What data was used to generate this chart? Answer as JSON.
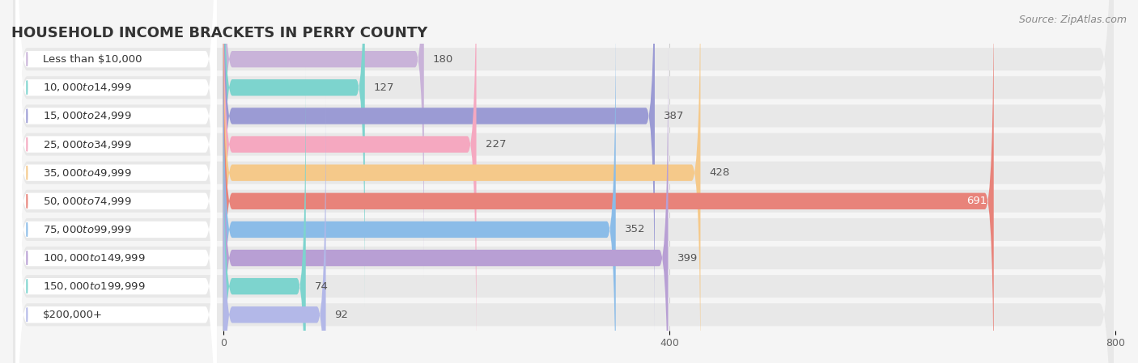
{
  "title": "HOUSEHOLD INCOME BRACKETS IN PERRY COUNTY",
  "source": "Source: ZipAtlas.com",
  "categories": [
    "Less than $10,000",
    "$10,000 to $14,999",
    "$15,000 to $24,999",
    "$25,000 to $34,999",
    "$35,000 to $49,999",
    "$50,000 to $74,999",
    "$75,000 to $99,999",
    "$100,000 to $149,999",
    "$150,000 to $199,999",
    "$200,000+"
  ],
  "values": [
    180,
    127,
    387,
    227,
    428,
    691,
    352,
    399,
    74,
    92
  ],
  "bar_colors": [
    "#c9b3d9",
    "#7dd4ce",
    "#9b9bd4",
    "#f5a8c0",
    "#f5c98a",
    "#e8837a",
    "#8bbce8",
    "#b89fd4",
    "#7dd4ce",
    "#b3b8e8"
  ],
  "value_label_color_inside": "#ffffff",
  "value_label_color_outside": "#555555",
  "data_max": 800,
  "xticks": [
    0,
    400,
    800
  ],
  "background_color": "#f5f5f5",
  "bar_bg_color": "#e8e8e8",
  "label_bg_color": "#ffffff",
  "title_fontsize": 13,
  "label_fontsize": 9.5,
  "value_fontsize": 9.5,
  "source_fontsize": 9,
  "title_color": "#333333",
  "label_color": "#333333",
  "value_color_dark": "#555555",
  "value_color_light": "#ffffff"
}
